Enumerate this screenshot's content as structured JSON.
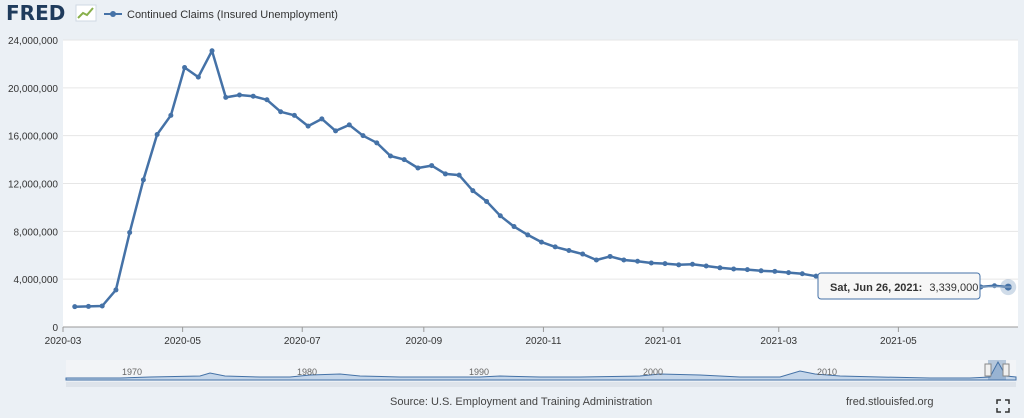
{
  "header": {
    "logo_text": "FRED",
    "legend_label": "Continued Claims (Insured Unemployment)"
  },
  "tooltip": {
    "date_label": "Sat, Jun 26, 2021:",
    "value_label": "3,339,000"
  },
  "footer": {
    "source": "Source: U.S. Employment and Training Administration",
    "site": "fred.stlouisfed.org"
  },
  "navigator": {
    "labels": [
      "1970",
      "1980",
      "1990",
      "2000",
      "2010"
    ]
  },
  "colors": {
    "series": "#4572a7",
    "background": "#ebf0f5",
    "plot_background": "#ffffff",
    "grid": "#e6e6e6",
    "navigator_fill": "#c5d6ea"
  },
  "chart_data": {
    "type": "line",
    "title": "",
    "xlabel": "",
    "ylabel": "",
    "x_tick_labels": [
      "2020-03",
      "2020-05",
      "2020-07",
      "2020-09",
      "2020-11",
      "2021-01",
      "2021-03",
      "2021-05"
    ],
    "x_tick_dates": [
      "2020-03-01",
      "2020-05-01",
      "2020-07-01",
      "2020-09-01",
      "2020-11-01",
      "2021-01-01",
      "2021-03-01",
      "2021-05-01"
    ],
    "y_ticks": [
      0,
      4000000,
      8000000,
      12000000,
      16000000,
      20000000,
      24000000
    ],
    "y_tick_labels": [
      "0",
      "4,000,000",
      "8,000,000",
      "12,000,000",
      "16,000,000",
      "20,000,000",
      "24,000,000"
    ],
    "ylim": [
      0,
      24000000
    ],
    "xlim": [
      "2020-03-01",
      "2021-07-01"
    ],
    "grid": true,
    "legend": "top-left",
    "series": [
      {
        "name": "Continued Claims (Insured Unemployment)",
        "points": [
          [
            "2020-03-07",
            1700000
          ],
          [
            "2020-03-14",
            1720000
          ],
          [
            "2020-03-21",
            1760000
          ],
          [
            "2020-03-28",
            3100000
          ],
          [
            "2020-04-04",
            7900000
          ],
          [
            "2020-04-11",
            12300000
          ],
          [
            "2020-04-18",
            16100000
          ],
          [
            "2020-04-25",
            17700000
          ],
          [
            "2020-05-02",
            21700000
          ],
          [
            "2020-05-09",
            20900000
          ],
          [
            "2020-05-16",
            23100000
          ],
          [
            "2020-05-23",
            19200000
          ],
          [
            "2020-05-30",
            19400000
          ],
          [
            "2020-06-06",
            19300000
          ],
          [
            "2020-06-13",
            19000000
          ],
          [
            "2020-06-20",
            18000000
          ],
          [
            "2020-06-27",
            17700000
          ],
          [
            "2020-07-04",
            16800000
          ],
          [
            "2020-07-11",
            17400000
          ],
          [
            "2020-07-18",
            16400000
          ],
          [
            "2020-07-25",
            16900000
          ],
          [
            "2020-08-01",
            16000000
          ],
          [
            "2020-08-08",
            15400000
          ],
          [
            "2020-08-15",
            14300000
          ],
          [
            "2020-08-22",
            14000000
          ],
          [
            "2020-08-29",
            13300000
          ],
          [
            "2020-09-05",
            13500000
          ],
          [
            "2020-09-12",
            12800000
          ],
          [
            "2020-09-19",
            12700000
          ],
          [
            "2020-09-26",
            11400000
          ],
          [
            "2020-10-03",
            10500000
          ],
          [
            "2020-10-10",
            9300000
          ],
          [
            "2020-10-17",
            8400000
          ],
          [
            "2020-10-24",
            7700000
          ],
          [
            "2020-10-31",
            7100000
          ],
          [
            "2020-11-07",
            6700000
          ],
          [
            "2020-11-14",
            6400000
          ],
          [
            "2020-11-21",
            6100000
          ],
          [
            "2020-11-28",
            5600000
          ],
          [
            "2020-12-05",
            5900000
          ],
          [
            "2020-12-12",
            5600000
          ],
          [
            "2020-12-19",
            5500000
          ],
          [
            "2020-12-26",
            5350000
          ],
          [
            "2021-01-02",
            5300000
          ],
          [
            "2021-01-09",
            5200000
          ],
          [
            "2021-01-16",
            5250000
          ],
          [
            "2021-01-23",
            5100000
          ],
          [
            "2021-01-30",
            4950000
          ],
          [
            "2021-02-06",
            4850000
          ],
          [
            "2021-02-13",
            4800000
          ],
          [
            "2021-02-20",
            4700000
          ],
          [
            "2021-02-27",
            4650000
          ],
          [
            "2021-03-06",
            4550000
          ],
          [
            "2021-03-13",
            4450000
          ],
          [
            "2021-03-20",
            4250000
          ],
          [
            "2021-03-27",
            4200000
          ],
          [
            "2021-04-03",
            3900000
          ],
          [
            "2021-04-10",
            3800000
          ],
          [
            "2021-04-17",
            3700000
          ],
          [
            "2021-04-24",
            3650000
          ],
          [
            "2021-05-01",
            3600000
          ],
          [
            "2021-05-08",
            3550000
          ],
          [
            "2021-05-15",
            3500000
          ],
          [
            "2021-05-22",
            3450000
          ],
          [
            "2021-05-29",
            3400000
          ],
          [
            "2021-06-05",
            3380000
          ],
          [
            "2021-06-12",
            3350000
          ],
          [
            "2021-06-19",
            3450000
          ],
          [
            "2021-06-26",
            3339000
          ]
        ]
      }
    ]
  }
}
